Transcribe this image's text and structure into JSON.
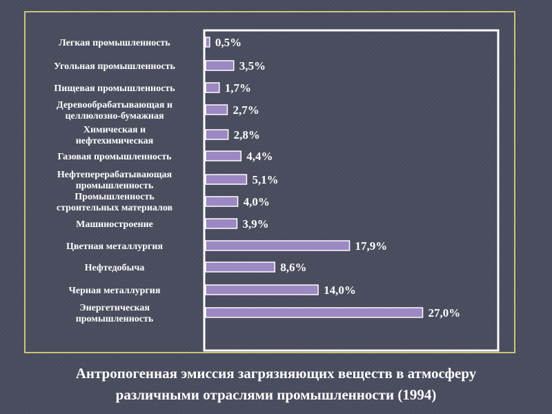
{
  "chart_data": {
    "type": "bar",
    "orientation": "horizontal",
    "categories": [
      "Легкая промышленность",
      "Угольная промышленность",
      "Пищевая промышленность",
      "Деревообрабатывающая и целлюлозно-бумажная",
      "Химическая и нефтехимическая",
      "Газовая промышленность",
      "Нефтеперерабатывающая промышленность",
      "Промышленность строительных материалов",
      "Машиностроение",
      "Цветная металлургия",
      "Нефтедобыча",
      "Черная металлургия",
      "Энергетическая промышленность"
    ],
    "values": [
      0.5,
      3.5,
      1.7,
      2.7,
      2.8,
      4.4,
      5.1,
      4.0,
      3.9,
      17.9,
      8.6,
      14.0,
      27.0
    ],
    "data_labels": [
      "0,5%",
      "3,5%",
      "1,7%",
      "2,7%",
      "2,8%",
      "4,4%",
      "5,1%",
      "4,0%",
      "3,9%",
      "17,9%",
      "8,6%",
      "14,0%",
      "27,0%"
    ],
    "unit": "%",
    "grid": false,
    "legend": false,
    "colors": {
      "bar_fill": "#9c88c2",
      "bar_stroke": "#ffffff",
      "background": "#4a4d5e",
      "frame": "#c9c67a",
      "plot_border": "#ffffff",
      "text": "#ffffff"
    }
  },
  "caption": {
    "line1": "Антропогенная эмиссия загрязняющих веществ в атмосферу",
    "line2": "различными отраслями промышленности (1994)"
  }
}
